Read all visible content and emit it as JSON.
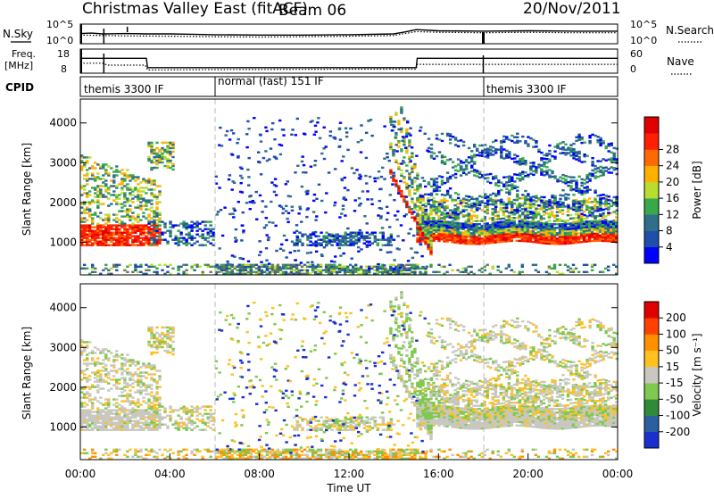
{
  "header": {
    "radar": "Christmas Valley East (fitACF)",
    "beam": "Beam 06",
    "date": "20/Nov/2011"
  },
  "colors": {
    "power_scale": [
      "#0000ff",
      "#1f4fa8",
      "#2f6f8a",
      "#38a84a",
      "#b8dc30",
      "#ffb000",
      "#ff6a00",
      "#ff2000",
      "#e00000"
    ],
    "velocity_scale": [
      "#1a2fd0",
      "#2a60a0",
      "#2f8a3a",
      "#80c850",
      "#c8c8c0",
      "#ffc020",
      "#ff9000",
      "#ff4000",
      "#e00000"
    ],
    "noise_speckle": "#4a8a3a"
  },
  "chart_data": [
    {
      "type": "line",
      "name": "noise-panel",
      "left_label": "N.Sky",
      "right_label": "N.Search",
      "left_ticks": [
        "10^5",
        "10^0"
      ],
      "right_ticks": [
        "10^5",
        "10^0"
      ],
      "series": [
        {
          "name": "N.Sky",
          "style": "solid",
          "x": [
            0,
            0.5,
            1,
            2,
            3,
            4,
            5,
            6,
            8,
            10,
            12,
            14,
            14.5,
            15,
            16,
            18,
            20,
            22,
            24
          ],
          "y": [
            2.6,
            2.7,
            2.5,
            2.6,
            2.5,
            2.5,
            2.4,
            2.3,
            2.2,
            2.2,
            2.3,
            2.5,
            3.0,
            3.6,
            3.3,
            3.2,
            3.3,
            3.2,
            3.2
          ]
        },
        {
          "name": "N.Search",
          "style": "dotted",
          "x": [
            0,
            1,
            2,
            4,
            6,
            8,
            10,
            12,
            14,
            15,
            16,
            18,
            20,
            22,
            24
          ],
          "y": [
            2.2,
            2.1,
            2.0,
            1.9,
            1.8,
            1.7,
            1.8,
            1.9,
            2.1,
            3.1,
            2.9,
            2.8,
            2.9,
            2.8,
            2.8
          ]
        }
      ]
    },
    {
      "type": "line",
      "name": "frequency-panel",
      "left_label": "Freq.",
      "left_unit": "[MHz]",
      "right_label": "Nave",
      "left_ticks": [
        "18",
        "8"
      ],
      "right_ticks": [
        "60",
        "0"
      ],
      "ylim": [
        8,
        18
      ],
      "y2lim": [
        0,
        60
      ],
      "series": [
        {
          "name": "Freq.",
          "style": "solid",
          "x": [
            0,
            1,
            1.01,
            2.95,
            3.0,
            15.0,
            15.05,
            18.0,
            18.05,
            24
          ],
          "y": [
            14.2,
            14.2,
            14.2,
            14.2,
            10.3,
            10.3,
            14.2,
            14.2,
            14.2,
            14.2
          ]
        },
        {
          "name": "Nave",
          "style": "dotted",
          "x": [
            0,
            1,
            1.2,
            2.9,
            3.0,
            6,
            12,
            15.0,
            15.05,
            24
          ],
          "y": [
            25,
            25,
            20,
            20,
            8,
            9,
            10,
            10,
            22,
            22
          ]
        }
      ]
    },
    {
      "type": "table",
      "name": "cpid-panel",
      "label": "CPID",
      "segments": [
        {
          "start": 0,
          "text": "themis 3300 IF"
        },
        {
          "start": 6,
          "text": "normal (fast) 151 IF"
        },
        {
          "start": 18,
          "text": "themis 3300 IF"
        }
      ]
    },
    {
      "type": "heatmap",
      "name": "power-panel",
      "ylabel": "Slant Range [km]",
      "yticks": [
        1000,
        2000,
        3000,
        4000
      ],
      "ylim": [
        180,
        4600
      ],
      "xlim": [
        0,
        24
      ],
      "colorbar_label": "Power [dB]",
      "colorbar_ticks": [
        4,
        8,
        12,
        16,
        20,
        24,
        28
      ],
      "colorbar_range": [
        0,
        32
      ]
    },
    {
      "type": "heatmap",
      "name": "velocity-panel",
      "ylabel": "Slant Range [km]",
      "yticks": [
        1000,
        2000,
        3000,
        4000
      ],
      "ylim": [
        180,
        4600
      ],
      "xlim": [
        0,
        24
      ],
      "xlabel": "Time UT",
      "xticks": [
        "00:00",
        "04:00",
        "08:00",
        "12:00",
        "16:00",
        "20:00",
        "00:00"
      ],
      "colorbar_label": "Velocity [m s⁻¹]",
      "colorbar_ticks": [
        "200",
        "100",
        "50",
        "15",
        "-15",
        "-50",
        "-100",
        "-200"
      ]
    }
  ]
}
